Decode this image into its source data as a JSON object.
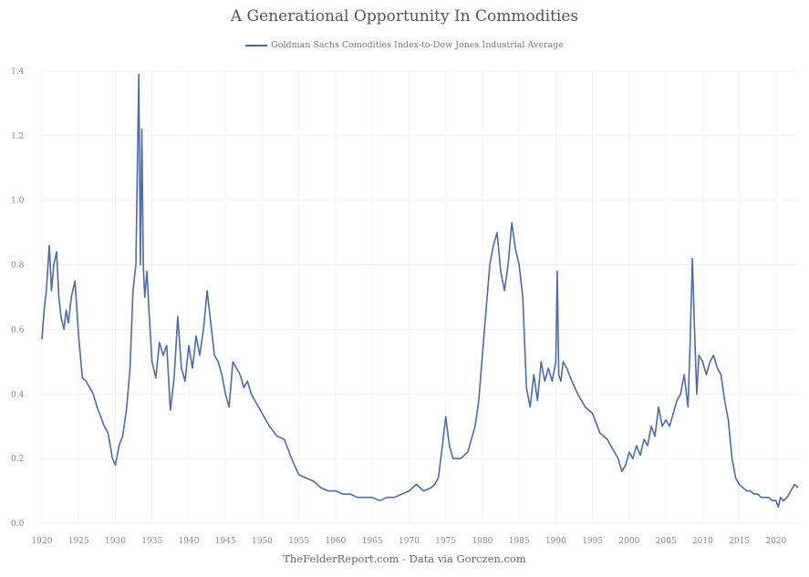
{
  "chart_data": {
    "type": "line",
    "title": "A Generational Opportunity In Commodities",
    "source_note": "TheFelderReport.com - Data via Gorczen.com",
    "xlabel": "",
    "ylabel": "",
    "xlim": [
      1920,
      2023
    ],
    "ylim": [
      0.0,
      1.4
    ],
    "grid": true,
    "legend_position": "top-center",
    "x_ticks": [
      "1920",
      "1925",
      "1930",
      "1935",
      "1940",
      "1945",
      "1950",
      "1955",
      "1960",
      "1965",
      "1970",
      "1975",
      "1980",
      "1985",
      "1990",
      "1995",
      "2000",
      "2005",
      "2010",
      "2015",
      "2020"
    ],
    "y_ticks": [
      "0.0",
      "0.2",
      "0.4",
      "0.6",
      "0.8",
      "1.0",
      "1.2",
      "1.4"
    ],
    "series": [
      {
        "name": "Goldman Sachs Comodities Index-to-Dow Jones Industrial Average",
        "color": "#4a6cad",
        "x": [
          1920.0,
          1920.3,
          1920.6,
          1921.0,
          1921.3,
          1921.6,
          1922.0,
          1922.3,
          1922.6,
          1923.0,
          1923.3,
          1923.6,
          1924.0,
          1924.5,
          1925.0,
          1925.5,
          1926.0,
          1926.5,
          1927.0,
          1927.5,
          1928.0,
          1928.5,
          1929.0,
          1929.3,
          1929.6,
          1930.0,
          1930.5,
          1931.0,
          1931.5,
          1932.0,
          1932.2,
          1932.4,
          1932.6,
          1932.8,
          1933.0,
          1933.2,
          1933.4,
          1933.6,
          1933.8,
          1934.0,
          1934.3,
          1934.6,
          1935.0,
          1935.5,
          1936.0,
          1936.5,
          1937.0,
          1937.5,
          1938.0,
          1938.5,
          1939.0,
          1939.5,
          1940.0,
          1940.5,
          1941.0,
          1941.5,
          1942.0,
          1942.5,
          1943.0,
          1943.5,
          1944.0,
          1944.5,
          1945.0,
          1945.5,
          1946.0,
          1946.5,
          1947.0,
          1947.5,
          1948.0,
          1948.5,
          1949.0,
          1950.0,
          1951.0,
          1952.0,
          1953.0,
          1954.0,
          1955.0,
          1956.0,
          1957.0,
          1958.0,
          1959.0,
          1960.0,
          1961.0,
          1962.0,
          1963.0,
          1964.0,
          1965.0,
          1966.0,
          1967.0,
          1968.0,
          1969.0,
          1970.0,
          1971.0,
          1972.0,
          1973.0,
          1973.5,
          1974.0,
          1974.5,
          1975.0,
          1975.5,
          1976.0,
          1977.0,
          1978.0,
          1979.0,
          1979.5,
          1980.0,
          1980.5,
          1981.0,
          1981.5,
          1982.0,
          1982.5,
          1983.0,
          1983.5,
          1984.0,
          1984.5,
          1985.0,
          1985.5,
          1986.0,
          1986.5,
          1987.0,
          1987.5,
          1988.0,
          1988.5,
          1989.0,
          1989.5,
          1990.0,
          1990.2,
          1990.4,
          1990.7,
          1991.0,
          1991.5,
          1992.0,
          1993.0,
          1994.0,
          1995.0,
          1996.0,
          1997.0,
          1998.0,
          1998.5,
          1999.0,
          1999.5,
          2000.0,
          2000.5,
          2001.0,
          2001.5,
          2002.0,
          2002.5,
          2003.0,
          2003.5,
          2004.0,
          2004.5,
          2005.0,
          2005.5,
          2006.0,
          2006.5,
          2007.0,
          2007.5,
          2008.0,
          2008.3,
          2008.6,
          2008.9,
          2009.2,
          2009.5,
          2010.0,
          2010.5,
          2011.0,
          2011.5,
          2012.0,
          2012.5,
          2013.0,
          2013.5,
          2014.0,
          2014.5,
          2015.0,
          2015.5,
          2016.0,
          2016.5,
          2017.0,
          2017.5,
          2018.0,
          2018.5,
          2019.0,
          2019.5,
          2020.0,
          2020.3,
          2020.6,
          2021.0,
          2021.5,
          2022.0,
          2022.5,
          2023.0
        ],
        "values": [
          0.57,
          0.66,
          0.72,
          0.86,
          0.72,
          0.8,
          0.84,
          0.7,
          0.64,
          0.6,
          0.66,
          0.62,
          0.7,
          0.75,
          0.58,
          0.45,
          0.44,
          0.42,
          0.4,
          0.36,
          0.33,
          0.3,
          0.28,
          0.24,
          0.2,
          0.18,
          0.24,
          0.27,
          0.35,
          0.48,
          0.6,
          0.72,
          0.76,
          0.8,
          1.1,
          1.39,
          0.8,
          1.22,
          0.8,
          0.7,
          0.78,
          0.65,
          0.5,
          0.45,
          0.56,
          0.52,
          0.55,
          0.35,
          0.45,
          0.64,
          0.48,
          0.44,
          0.55,
          0.48,
          0.58,
          0.52,
          0.6,
          0.72,
          0.62,
          0.52,
          0.5,
          0.46,
          0.4,
          0.36,
          0.5,
          0.48,
          0.46,
          0.42,
          0.44,
          0.4,
          0.38,
          0.34,
          0.3,
          0.27,
          0.26,
          0.2,
          0.15,
          0.14,
          0.13,
          0.11,
          0.1,
          0.1,
          0.09,
          0.09,
          0.08,
          0.08,
          0.08,
          0.07,
          0.08,
          0.08,
          0.09,
          0.1,
          0.12,
          0.1,
          0.11,
          0.12,
          0.14,
          0.23,
          0.33,
          0.24,
          0.2,
          0.2,
          0.22,
          0.3,
          0.38,
          0.52,
          0.66,
          0.8,
          0.86,
          0.9,
          0.78,
          0.72,
          0.8,
          0.93,
          0.85,
          0.8,
          0.7,
          0.42,
          0.36,
          0.46,
          0.38,
          0.5,
          0.44,
          0.48,
          0.44,
          0.5,
          0.78,
          0.46,
          0.44,
          0.5,
          0.48,
          0.45,
          0.4,
          0.36,
          0.34,
          0.28,
          0.26,
          0.22,
          0.2,
          0.16,
          0.18,
          0.22,
          0.2,
          0.24,
          0.21,
          0.26,
          0.24,
          0.3,
          0.27,
          0.36,
          0.3,
          0.32,
          0.3,
          0.34,
          0.38,
          0.4,
          0.46,
          0.36,
          0.56,
          0.82,
          0.6,
          0.4,
          0.52,
          0.5,
          0.46,
          0.5,
          0.52,
          0.48,
          0.46,
          0.38,
          0.32,
          0.2,
          0.14,
          0.12,
          0.11,
          0.1,
          0.1,
          0.09,
          0.09,
          0.08,
          0.08,
          0.08,
          0.07,
          0.07,
          0.05,
          0.08,
          0.07,
          0.08,
          0.1,
          0.12,
          0.11
        ]
      }
    ]
  }
}
